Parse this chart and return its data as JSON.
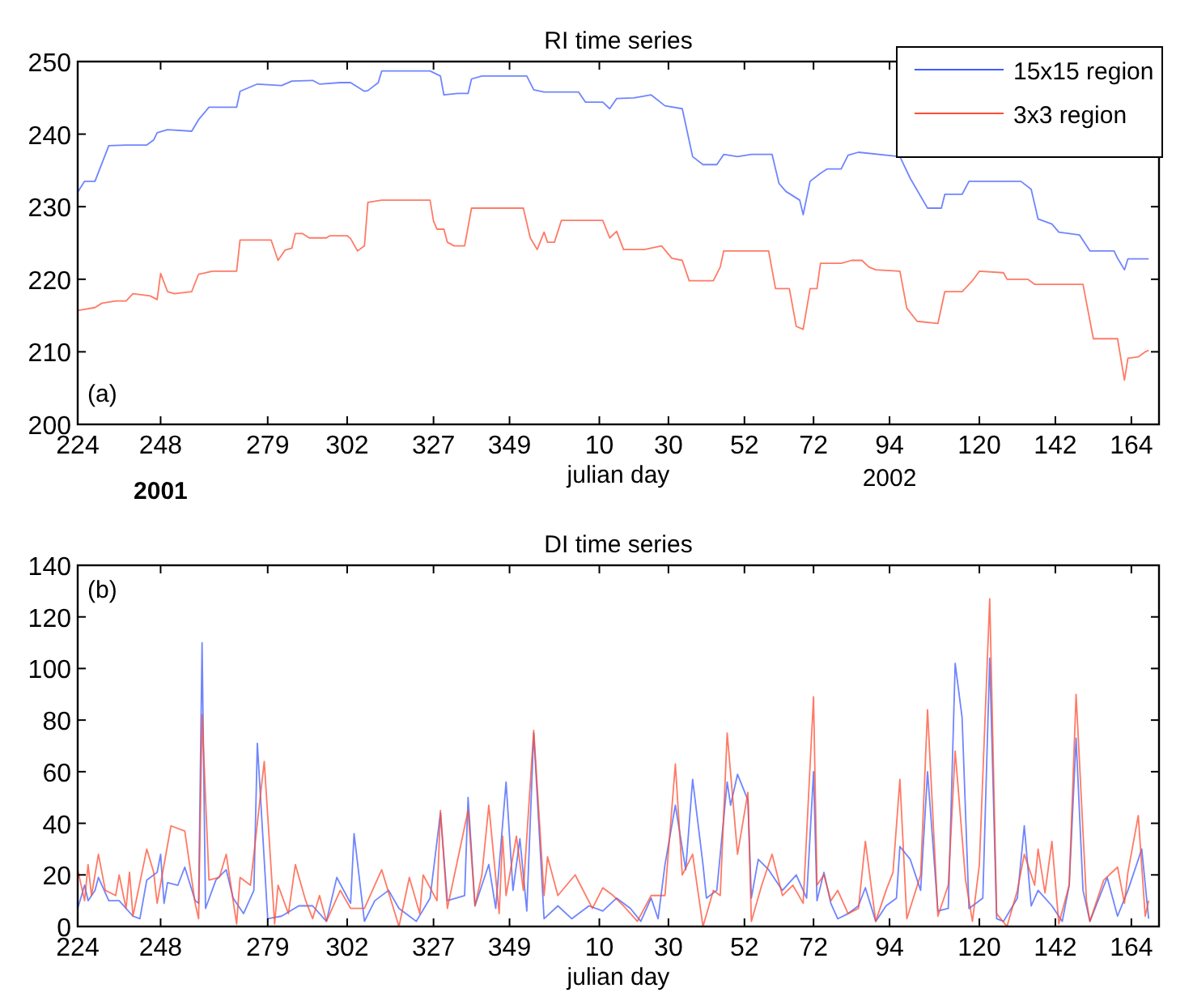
{
  "chart_data": [
    {
      "type": "line",
      "title": "RI time series",
      "xlabel": "julian day",
      "annotations": [
        "(a)",
        "2001",
        "2002"
      ],
      "legend": "top right",
      "xlim": [
        "2001-08-12",
        "2002-06-21"
      ],
      "ylim": [
        200,
        250
      ],
      "yticks": [
        200,
        210,
        220,
        230,
        240,
        250
      ],
      "xticks": [
        {
          "value": "2001-08-12",
          "label": "224"
        },
        {
          "value": "2001-09-05",
          "label": "248"
        },
        {
          "value": "2001-10-06",
          "label": "279"
        },
        {
          "value": "2001-10-29",
          "label": "302"
        },
        {
          "value": "2001-11-23",
          "label": "327"
        },
        {
          "value": "2001-12-15",
          "label": "349"
        },
        {
          "value": "2002-01-10",
          "label": "10"
        },
        {
          "value": "2002-01-30",
          "label": "30"
        },
        {
          "value": "2002-02-21",
          "label": "52"
        },
        {
          "value": "2002-03-13",
          "label": "72"
        },
        {
          "value": "2002-04-04",
          "label": "94"
        },
        {
          "value": "2002-04-30",
          "label": "120"
        },
        {
          "value": "2002-05-22",
          "label": "142"
        },
        {
          "value": "2002-06-13",
          "label": "164"
        }
      ],
      "series": [
        {
          "name": "15x15 region",
          "color": "#3f5cff",
          "x": [
            "2001-08-12",
            "2001-08-14",
            "2001-08-17",
            "2001-08-21",
            "2001-08-26",
            "2001-09-01",
            "2001-09-03",
            "2001-09-04",
            "2001-09-07",
            "2001-09-14",
            "2001-09-16",
            "2001-09-19",
            "2001-09-27",
            "2001-09-28",
            "2001-10-03",
            "2001-10-10",
            "2001-10-13",
            "2001-10-19",
            "2001-10-21",
            "2001-10-27",
            "2001-10-30",
            "2001-11-03",
            "2001-11-04",
            "2001-11-07",
            "2001-11-08",
            "2001-11-22",
            "2001-11-25",
            "2001-11-26",
            "2001-11-30",
            "2001-12-03",
            "2001-12-04",
            "2001-12-07",
            "2001-12-20",
            "2001-12-22",
            "2001-12-25",
            "2002-01-04",
            "2002-01-06",
            "2002-01-11",
            "2002-01-13",
            "2002-01-15",
            "2002-01-20",
            "2002-01-25",
            "2002-01-29",
            "2002-02-03",
            "2002-02-04",
            "2002-02-06",
            "2002-02-09",
            "2002-02-13",
            "2002-02-15",
            "2002-02-19",
            "2002-02-23",
            "2002-03-01",
            "2002-03-03",
            "2002-03-05",
            "2002-03-09",
            "2002-03-10",
            "2002-03-12",
            "2002-03-15",
            "2002-03-17",
            "2002-03-21",
            "2002-03-23",
            "2002-03-26",
            "2002-04-07",
            "2002-04-10",
            "2002-04-15",
            "2002-04-19",
            "2002-04-20",
            "2002-04-25",
            "2002-04-27",
            "2002-05-12",
            "2002-05-15",
            "2002-05-17",
            "2002-05-21",
            "2002-05-23",
            "2002-05-29",
            "2002-06-01",
            "2002-06-08",
            "2002-06-09",
            "2002-06-11",
            "2002-06-12",
            "2002-06-15",
            "2002-06-18"
          ],
          "values": [
            232.0,
            233.5,
            233.5,
            238.4,
            238.5,
            238.5,
            239.2,
            240.2,
            240.6,
            240.4,
            242.0,
            243.7,
            243.7,
            245.9,
            246.9,
            246.7,
            247.3,
            247.4,
            246.9,
            247.1,
            247.1,
            245.9,
            246.0,
            247.1,
            248.7,
            248.7,
            248.0,
            245.4,
            245.6,
            245.6,
            247.6,
            248.0,
            248.0,
            246.1,
            245.8,
            245.8,
            244.4,
            244.4,
            243.5,
            244.9,
            245.0,
            245.4,
            243.9,
            243.5,
            241.3,
            236.9,
            235.8,
            235.8,
            237.2,
            236.9,
            237.2,
            237.2,
            233.2,
            232.1,
            230.9,
            228.9,
            233.5,
            234.6,
            235.2,
            235.2,
            237.1,
            237.5,
            236.9,
            233.9,
            229.8,
            229.8,
            231.7,
            231.7,
            233.5,
            233.5,
            232.4,
            228.3,
            227.6,
            226.5,
            226.1,
            223.9,
            223.9,
            222.9,
            221.3,
            222.8,
            222.8,
            222.8
          ]
        },
        {
          "name": "3x3 region",
          "color": "#ff4d33",
          "x": [
            "2001-08-12",
            "2001-08-17",
            "2001-08-19",
            "2001-08-23",
            "2001-08-26",
            "2001-08-28",
            "2001-09-02",
            "2001-09-04",
            "2001-09-05",
            "2001-09-07",
            "2001-09-09",
            "2001-09-14",
            "2001-09-16",
            "2001-09-20",
            "2001-09-27",
            "2001-09-28",
            "2001-10-07",
            "2001-10-09",
            "2001-10-11",
            "2001-10-13",
            "2001-10-14",
            "2001-10-16",
            "2001-10-18",
            "2001-10-23",
            "2001-10-24",
            "2001-10-29",
            "2001-10-30",
            "2001-11-01",
            "2001-11-03",
            "2001-11-04",
            "2001-11-08",
            "2001-11-22",
            "2001-11-23",
            "2001-11-24",
            "2001-11-26",
            "2001-11-27",
            "2001-11-29",
            "2001-12-02",
            "2001-12-04",
            "2001-12-19",
            "2001-12-21",
            "2001-12-23",
            "2001-12-25",
            "2001-12-26",
            "2001-12-28",
            "2001-12-30",
            "2002-01-11",
            "2002-01-13",
            "2002-01-15",
            "2002-01-17",
            "2002-01-23",
            "2002-01-28",
            "2002-01-31",
            "2002-02-03",
            "2002-02-05",
            "2002-02-12",
            "2002-02-14",
            "2002-02-15",
            "2002-02-19",
            "2002-02-28",
            "2002-03-02",
            "2002-03-06",
            "2002-03-08",
            "2002-03-10",
            "2002-03-12",
            "2002-03-14",
            "2002-03-15",
            "2002-03-21",
            "2002-03-24",
            "2002-03-27",
            "2002-03-29",
            "2002-03-31",
            "2002-04-07",
            "2002-04-09",
            "2002-04-12",
            "2002-04-18",
            "2002-04-20",
            "2002-04-25",
            "2002-04-28",
            "2002-04-30",
            "2002-05-07",
            "2002-05-08",
            "2002-05-14",
            "2002-05-16",
            "2002-05-30",
            "2002-06-02",
            "2002-06-09",
            "2002-06-11",
            "2002-06-12",
            "2002-06-15",
            "2002-06-17",
            "2002-06-18"
          ],
          "values": [
            215.7,
            216.1,
            216.7,
            217.0,
            217.0,
            218.0,
            217.7,
            217.2,
            220.8,
            218.3,
            218.0,
            218.3,
            220.7,
            221.1,
            221.1,
            225.4,
            225.4,
            222.6,
            224.0,
            224.3,
            226.3,
            226.3,
            225.7,
            225.7,
            226.0,
            226.0,
            225.6,
            223.9,
            224.6,
            230.6,
            230.9,
            230.9,
            228.0,
            226.9,
            226.9,
            225.1,
            224.6,
            224.6,
            229.8,
            229.8,
            225.7,
            224.1,
            226.5,
            225.1,
            225.1,
            228.1,
            228.1,
            225.7,
            226.6,
            224.1,
            224.1,
            224.6,
            222.9,
            222.6,
            219.8,
            219.8,
            221.7,
            223.9,
            223.9,
            223.9,
            218.7,
            218.7,
            213.5,
            213.1,
            218.7,
            218.7,
            222.2,
            222.2,
            222.6,
            222.6,
            221.7,
            221.3,
            221.1,
            216.0,
            214.2,
            213.9,
            218.3,
            218.3,
            219.8,
            221.1,
            220.9,
            220.0,
            220.0,
            219.3,
            219.3,
            211.8,
            211.8,
            206.1,
            209.1,
            209.3,
            210.0,
            210.2
          ]
        }
      ]
    },
    {
      "type": "line",
      "title": "DI time series",
      "xlabel": "julian day",
      "annotations": [
        "(b)"
      ],
      "xlim": [
        "2001-08-12",
        "2002-06-21"
      ],
      "ylim": [
        0,
        140
      ],
      "yticks": [
        0,
        20,
        40,
        60,
        80,
        100,
        120,
        140
      ],
      "xticks": [
        {
          "value": "2001-08-12",
          "label": "224"
        },
        {
          "value": "2001-09-05",
          "label": "248"
        },
        {
          "value": "2001-10-06",
          "label": "279"
        },
        {
          "value": "2001-10-29",
          "label": "302"
        },
        {
          "value": "2001-11-23",
          "label": "327"
        },
        {
          "value": "2001-12-15",
          "label": "349"
        },
        {
          "value": "2002-01-10",
          "label": "10"
        },
        {
          "value": "2002-01-30",
          "label": "30"
        },
        {
          "value": "2002-02-21",
          "label": "52"
        },
        {
          "value": "2002-03-13",
          "label": "72"
        },
        {
          "value": "2002-04-04",
          "label": "94"
        },
        {
          "value": "2002-04-30",
          "label": "120"
        },
        {
          "value": "2002-05-22",
          "label": "142"
        },
        {
          "value": "2002-06-13",
          "label": "164"
        }
      ],
      "series": [
        {
          "color": "#3f5cff",
          "x": [
            "2001-08-12",
            "2001-08-14",
            "2001-08-15",
            "2001-08-17",
            "2001-08-18",
            "2001-08-21",
            "2001-08-24",
            "2001-08-28",
            "2001-08-30",
            "2001-09-01",
            "2001-09-04",
            "2001-09-05",
            "2001-09-06",
            "2001-09-07",
            "2001-09-10",
            "2001-09-12",
            "2001-09-15",
            "2001-09-16",
            "2001-09-17",
            "2001-09-18",
            "2001-09-21",
            "2001-09-24",
            "2001-09-26",
            "2001-09-29",
            "2001-10-02",
            "2001-10-03",
            "2001-10-06",
            "2001-10-10",
            "2001-10-15",
            "2001-10-19",
            "2001-10-23",
            "2001-10-26",
            "2001-10-30",
            "2001-10-31",
            "2001-11-03",
            "2001-11-06",
            "2001-11-10",
            "2001-11-13",
            "2001-11-18",
            "2001-11-22",
            "2001-11-25",
            "2001-11-27",
            "2001-12-02",
            "2001-12-03",
            "2001-12-05",
            "2001-12-09",
            "2001-12-11",
            "2001-12-14",
            "2001-12-16",
            "2001-12-18",
            "2001-12-20",
            "2001-12-22",
            "2001-12-25",
            "2001-12-29",
            "2002-01-02",
            "2002-01-07",
            "2002-01-11",
            "2002-01-15",
            "2002-01-19",
            "2002-01-22",
            "2002-01-25",
            "2002-01-27",
            "2002-01-29",
            "2002-02-01",
            "2002-02-04",
            "2002-02-06",
            "2002-02-09",
            "2002-02-10",
            "2002-02-13",
            "2002-02-16",
            "2002-02-17",
            "2002-02-19",
            "2002-02-22",
            "2002-02-23",
            "2002-02-25",
            "2002-02-28",
            "2002-03-04",
            "2002-03-08",
            "2002-03-11",
            "2002-03-13",
            "2002-03-14",
            "2002-03-16",
            "2002-03-18",
            "2002-03-20",
            "2002-03-23",
            "2002-03-26",
            "2002-03-28",
            "2002-03-31",
            "2002-04-03",
            "2002-04-06",
            "2002-04-07",
            "2002-04-10",
            "2002-04-13",
            "2002-04-15",
            "2002-04-18",
            "2002-04-21",
            "2002-04-23",
            "2002-04-25",
            "2002-04-27",
            "2002-05-01",
            "2002-05-03",
            "2002-05-05",
            "2002-05-07",
            "2002-05-11",
            "2002-05-13",
            "2002-05-15",
            "2002-05-17",
            "2002-05-21",
            "2002-05-24",
            "2002-05-26",
            "2002-05-28",
            "2002-05-30",
            "2002-06-01",
            "2002-06-06",
            "2002-06-09",
            "2002-06-12",
            "2002-06-16",
            "2002-06-18"
          ],
          "values": [
            7,
            16,
            10,
            14,
            19,
            10,
            10,
            4,
            3,
            18,
            21,
            28,
            9,
            17,
            16,
            23,
            10,
            9,
            110,
            7,
            18,
            22,
            11,
            5,
            14,
            71,
            3,
            4,
            8,
            8,
            2,
            19,
            9,
            36,
            2,
            10,
            14,
            7,
            2,
            11,
            44,
            10,
            12,
            50,
            8,
            24,
            7,
            56,
            14,
            34,
            6,
            75,
            3,
            8,
            3,
            8,
            6,
            11,
            7,
            2,
            11,
            3,
            24,
            47,
            22,
            57,
            24,
            11,
            14,
            56,
            47,
            59,
            49,
            11,
            26,
            22,
            14,
            20,
            11,
            60,
            10,
            21,
            9,
            3,
            5,
            8,
            15,
            2,
            8,
            11,
            31,
            26,
            14,
            60,
            6,
            7,
            102,
            81,
            7,
            11,
            104,
            3,
            2,
            11,
            39,
            8,
            14,
            8,
            2,
            16,
            73,
            14,
            2,
            19,
            4,
            14,
            30,
            3
          ]
        },
        {
          "color": "#ff4d33",
          "x": [
            "2001-08-12",
            "2001-08-14",
            "2001-08-15",
            "2001-08-16",
            "2001-08-18",
            "2001-08-20",
            "2001-08-23",
            "2001-08-24",
            "2001-08-26",
            "2001-08-27",
            "2001-08-28",
            "2001-09-01",
            "2001-09-03",
            "2001-09-04",
            "2001-09-08",
            "2001-09-12",
            "2001-09-15",
            "2001-09-16",
            "2001-09-17",
            "2001-09-19",
            "2001-09-22",
            "2001-09-24",
            "2001-09-27",
            "2001-09-28",
            "2001-10-01",
            "2001-10-05",
            "2001-10-08",
            "2001-10-09",
            "2001-10-12",
            "2001-10-14",
            "2001-10-17",
            "2001-10-19",
            "2001-10-21",
            "2001-10-23",
            "2001-10-27",
            "2001-10-30",
            "2001-11-03",
            "2001-11-08",
            "2001-11-13",
            "2001-11-16",
            "2001-11-19",
            "2001-11-20",
            "2001-11-24",
            "2001-11-25",
            "2001-11-27",
            "2001-12-03",
            "2001-12-05",
            "2001-12-07",
            "2001-12-09",
            "2001-12-12",
            "2001-12-13",
            "2001-12-14",
            "2001-12-17",
            "2001-12-19",
            "2001-12-22",
            "2001-12-25",
            "2001-12-26",
            "2001-12-29",
            "2002-01-03",
            "2002-01-08",
            "2002-01-11",
            "2002-01-14",
            "2002-01-17",
            "2002-01-21",
            "2002-01-25",
            "2002-01-29",
            "2002-02-01",
            "2002-02-03",
            "2002-02-06",
            "2002-02-09",
            "2002-02-12",
            "2002-02-14",
            "2002-02-16",
            "2002-02-19",
            "2002-02-22",
            "2002-02-23",
            "2002-02-26",
            "2002-03-01",
            "2002-03-04",
            "2002-03-07",
            "2002-03-10",
            "2002-03-13",
            "2002-03-14",
            "2002-03-16",
            "2002-03-18",
            "2002-03-20",
            "2002-03-23",
            "2002-03-26",
            "2002-03-28",
            "2002-03-31",
            "2002-04-03",
            "2002-04-05",
            "2002-04-07",
            "2002-04-09",
            "2002-04-13",
            "2002-04-15",
            "2002-04-18",
            "2002-04-21",
            "2002-04-23",
            "2002-04-26",
            "2002-04-28",
            "2002-04-30",
            "2002-05-03",
            "2002-05-05",
            "2002-05-08",
            "2002-05-11",
            "2002-05-13",
            "2002-05-16",
            "2002-05-17",
            "2002-05-19",
            "2002-05-21",
            "2002-05-23",
            "2002-05-26",
            "2002-05-28",
            "2002-05-31",
            "2002-06-01",
            "2002-06-05",
            "2002-06-09",
            "2002-06-11",
            "2002-06-12",
            "2002-06-15",
            "2002-06-17",
            "2002-06-18"
          ],
          "values": [
            22,
            10,
            24,
            12,
            28,
            14,
            12,
            20,
            7,
            21,
            4,
            30,
            21,
            9,
            39,
            37,
            9,
            3,
            82,
            18,
            19,
            28,
            1,
            19,
            16,
            64,
            1,
            16,
            5,
            24,
            10,
            3,
            12,
            2,
            14,
            7,
            7,
            22,
            0,
            19,
            5,
            20,
            10,
            45,
            7,
            45,
            8,
            20,
            47,
            5,
            35,
            12,
            35,
            14,
            76,
            12,
            27,
            12,
            20,
            7,
            15,
            12,
            8,
            2,
            12,
            12,
            63,
            20,
            28,
            0,
            14,
            12,
            75,
            28,
            52,
            2,
            16,
            28,
            12,
            16,
            9,
            89,
            16,
            20,
            10,
            14,
            5,
            7,
            33,
            2,
            14,
            21,
            57,
            3,
            20,
            84,
            4,
            16,
            68,
            18,
            2,
            24,
            127,
            5,
            0,
            14,
            28,
            16,
            30,
            13,
            33,
            1,
            16,
            90,
            10,
            2,
            18,
            23,
            9,
            21,
            43,
            4,
            10
          ]
        }
      ]
    }
  ]
}
